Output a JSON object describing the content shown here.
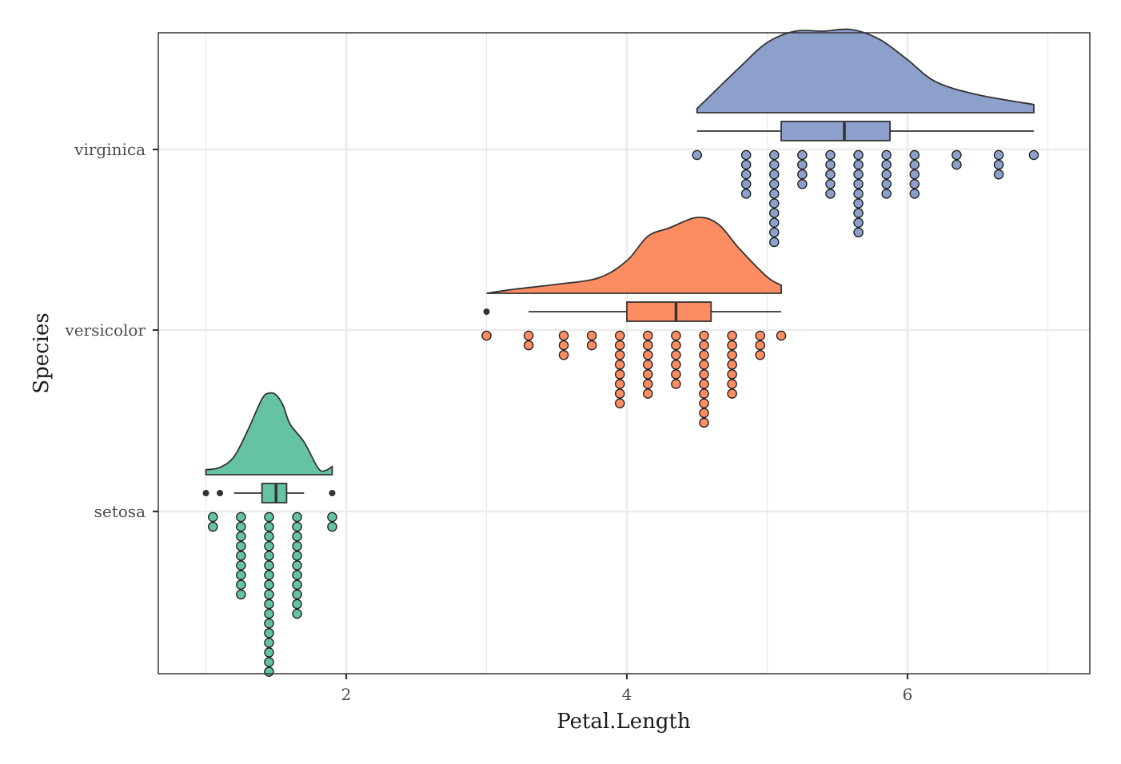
{
  "chart_data": {
    "type": "raincloud",
    "xlabel": "Petal.Length",
    "ylabel": "Species",
    "xlim": [
      0.7,
      7.325
    ],
    "x_ticks": [
      2,
      4,
      6
    ],
    "x_tick_labels": [
      "2",
      "4",
      "6"
    ],
    "x_minor_ticks": [
      1,
      3,
      5,
      7
    ],
    "categories": [
      "setosa",
      "versicolor",
      "virginica"
    ],
    "grid": true,
    "legend": "none",
    "series": [
      {
        "category": "setosa",
        "color": "#66c2a5",
        "box": {
          "q1": 1.4,
          "median": 1.5,
          "q3": 1.575,
          "whisker_low": 1.2,
          "whisker_high": 1.7
        },
        "outliers": [
          1.0,
          1.1,
          1.9
        ],
        "density": [
          [
            1.0,
            0.06
          ],
          [
            1.1,
            0.09
          ],
          [
            1.2,
            0.22
          ],
          [
            1.3,
            0.55
          ],
          [
            1.4,
            0.93
          ],
          [
            1.45,
            1.0
          ],
          [
            1.5,
            0.98
          ],
          [
            1.55,
            0.85
          ],
          [
            1.6,
            0.62
          ],
          [
            1.7,
            0.4
          ],
          [
            1.8,
            0.08
          ],
          [
            1.85,
            0.05
          ],
          [
            1.9,
            0.1
          ]
        ],
        "dot_columns": [
          [
            1.05,
            2
          ],
          [
            1.25,
            9
          ],
          [
            1.45,
            17
          ],
          [
            1.65,
            11
          ],
          [
            1.9,
            2
          ]
        ]
      },
      {
        "category": "versicolor",
        "color": "#fc8d62",
        "box": {
          "q1": 4.0,
          "median": 4.35,
          "q3": 4.6,
          "whisker_low": 3.3,
          "whisker_high": 5.1
        },
        "outliers": [
          3.0
        ],
        "density": [
          [
            3.0,
            0.0
          ],
          [
            3.2,
            0.05
          ],
          [
            3.5,
            0.11
          ],
          [
            3.8,
            0.19
          ],
          [
            4.0,
            0.4
          ],
          [
            4.15,
            0.7
          ],
          [
            4.3,
            0.8
          ],
          [
            4.5,
            0.93
          ],
          [
            4.65,
            0.85
          ],
          [
            4.8,
            0.55
          ],
          [
            5.0,
            0.2
          ],
          [
            5.1,
            0.1
          ]
        ],
        "dot_columns": [
          [
            3.0,
            1
          ],
          [
            3.3,
            2
          ],
          [
            3.55,
            3
          ],
          [
            3.75,
            2
          ],
          [
            3.95,
            8
          ],
          [
            4.15,
            7
          ],
          [
            4.35,
            6
          ],
          [
            4.55,
            10
          ],
          [
            4.75,
            7
          ],
          [
            4.95,
            3
          ],
          [
            5.1,
            1
          ]
        ]
      },
      {
        "category": "virginica",
        "color": "#8da0cb",
        "box": {
          "q1": 5.1,
          "median": 5.55,
          "q3": 5.875,
          "whisker_low": 4.5,
          "whisker_high": 6.9
        },
        "outliers": [],
        "density": [
          [
            4.5,
            0.05
          ],
          [
            4.8,
            0.55
          ],
          [
            5.0,
            0.86
          ],
          [
            5.2,
            1.0
          ],
          [
            5.4,
            1.0
          ],
          [
            5.6,
            1.02
          ],
          [
            5.8,
            0.9
          ],
          [
            6.0,
            0.65
          ],
          [
            6.2,
            0.38
          ],
          [
            6.5,
            0.22
          ],
          [
            6.9,
            0.1
          ]
        ],
        "dot_columns": [
          [
            4.5,
            1
          ],
          [
            4.85,
            5
          ],
          [
            5.05,
            10
          ],
          [
            5.25,
            4
          ],
          [
            5.45,
            5
          ],
          [
            5.65,
            9
          ],
          [
            5.85,
            5
          ],
          [
            6.05,
            5
          ],
          [
            6.35,
            2
          ],
          [
            6.65,
            3
          ],
          [
            6.9,
            1
          ]
        ]
      }
    ]
  }
}
